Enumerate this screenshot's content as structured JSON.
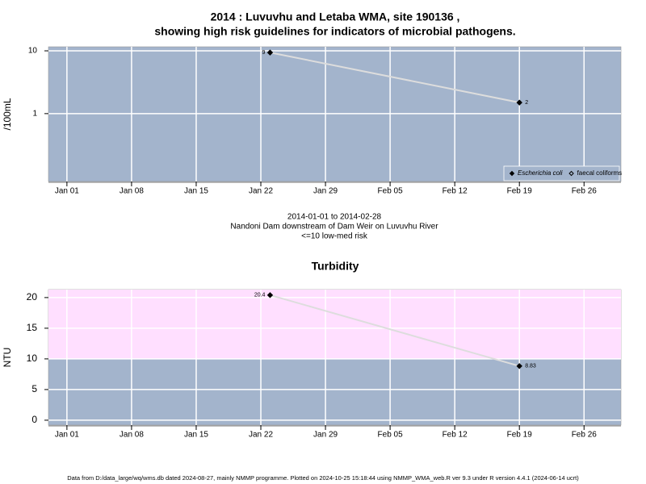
{
  "chart_data": [
    {
      "type": "line",
      "title": [
        "2014 : Luvuvhu and Letaba WMA, site 190136 ,",
        "showing high risk guidelines for indicators of microbial pathogens."
      ],
      "ylabel": "/100mL",
      "x": [
        "2014-01-23",
        "2014-02-19"
      ],
      "series": [
        {
          "name": "Escherichia coli",
          "color": "#000000",
          "line_color": "#dddddd",
          "filled": true,
          "values": [
            9.4,
            1.5
          ],
          "value_labels": [
            "9",
            "2"
          ]
        },
        {
          "name": "faecal coliforms",
          "color": "#000000",
          "line_color": "#dddddd",
          "filled": false,
          "values": [
            null,
            null
          ]
        }
      ],
      "xlim": [
        "2013-12-30",
        "2014-03-02"
      ],
      "xticks": [
        {
          "value": "2014-01-01",
          "label": "Jan 01"
        },
        {
          "value": "2014-01-08",
          "label": "Jan 08"
        },
        {
          "value": "2014-01-15",
          "label": "Jan 15"
        },
        {
          "value": "2014-01-22",
          "label": "Jan 22"
        },
        {
          "value": "2014-01-29",
          "label": "Jan 29"
        },
        {
          "value": "2014-02-05",
          "label": "Feb 05"
        },
        {
          "value": "2014-02-12",
          "label": "Feb 12"
        },
        {
          "value": "2014-02-19",
          "label": "Feb 19"
        },
        {
          "value": "2014-02-26",
          "label": "Feb 26"
        }
      ],
      "ylim": [
        0.083,
        11.6
      ],
      "yticks": [
        1,
        10
      ],
      "log_y": true,
      "grid": true,
      "background": "#a3b4cc",
      "legend": "bottom-right",
      "caption": [
        "2014-01-01 to 2014-02-28",
        "Nandoni Dam downstream of Dam Weir on Luvuvhu River",
        "<=10 low-med risk"
      ]
    },
    {
      "type": "line",
      "title": [
        "Turbidity"
      ],
      "ylabel": "NTU",
      "x": [
        "2014-01-23",
        "2014-02-19"
      ],
      "series": [
        {
          "color": "#000000",
          "line_color": "#dddddd",
          "filled": true,
          "values": [
            20.4,
            8.83
          ]
        }
      ],
      "xlim": [
        "2013-12-30",
        "2014-03-02"
      ],
      "xticks": [
        {
          "value": "2014-01-01",
          "label": "Jan 01"
        },
        {
          "value": "2014-01-08",
          "label": "Jan 08"
        },
        {
          "value": "2014-01-15",
          "label": "Jan 15"
        },
        {
          "value": "2014-01-22",
          "label": "Jan 22"
        },
        {
          "value": "2014-01-29",
          "label": "Jan 29"
        },
        {
          "value": "2014-02-05",
          "label": "Feb 05"
        },
        {
          "value": "2014-02-12",
          "label": "Feb 12"
        },
        {
          "value": "2014-02-19",
          "label": "Feb 19"
        },
        {
          "value": "2014-02-26",
          "label": "Feb 26"
        }
      ],
      "ylim": [
        -0.8,
        21.3
      ],
      "yticks": [
        0,
        5,
        10,
        15,
        20
      ],
      "log_y": false,
      "grid": true,
      "background": "#a3b4cc",
      "band": {
        "ylim": [
          10,
          21.3
        ],
        "color": "#ffdfff"
      }
    }
  ],
  "footer": "Data from D:/data_large/wq/wms.db dated 2024-08-27, mainly NMMP programme. Plotted on 2024-10-25 15:18:44 using NMMP_WMA_web.R ver 9.3 under R version 4.4.1 (2024-06-14 ucrt)"
}
